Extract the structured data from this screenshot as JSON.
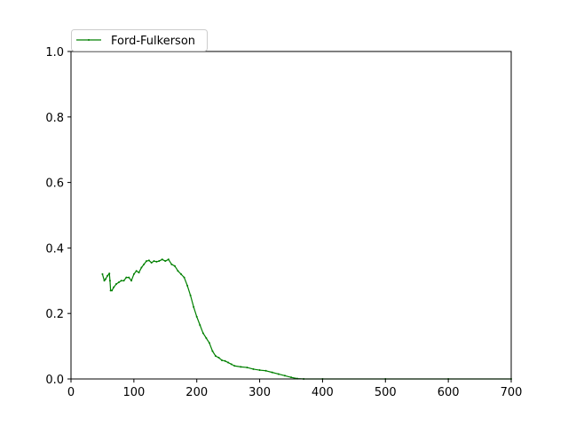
{
  "chart_data": {
    "type": "line",
    "xlim": [
      0,
      700
    ],
    "ylim": [
      0,
      1.0
    ],
    "xticks": [
      "0",
      "100",
      "200",
      "300",
      "400",
      "500",
      "600",
      "700"
    ],
    "yticks": [
      "0.0",
      "0.2",
      "0.4",
      "0.6",
      "0.8",
      "1.0"
    ],
    "grid": false,
    "legend_position": "top-left",
    "series": [
      {
        "name": "Ford-Fulkerson",
        "color": "#008000",
        "marker": "point",
        "x": [
          50,
          53,
          55,
          58,
          61,
          62,
          63,
          65,
          68,
          72,
          76,
          80,
          84,
          88,
          92,
          96,
          100,
          104,
          108,
          112,
          116,
          120,
          124,
          128,
          132,
          136,
          140,
          145,
          150,
          155,
          160,
          165,
          170,
          175,
          180,
          185,
          190,
          195,
          200,
          205,
          210,
          215,
          220,
          225,
          230,
          235,
          240,
          245,
          250,
          255,
          260,
          270,
          280,
          290,
          300,
          310,
          320,
          330,
          340,
          350,
          360,
          370,
          400,
          500,
          600,
          700
        ],
        "y": [
          0.32,
          0.3,
          0.305,
          0.315,
          0.322,
          0.3,
          0.27,
          0.27,
          0.28,
          0.29,
          0.295,
          0.3,
          0.3,
          0.31,
          0.31,
          0.3,
          0.32,
          0.33,
          0.325,
          0.34,
          0.35,
          0.36,
          0.362,
          0.355,
          0.36,
          0.358,
          0.36,
          0.365,
          0.36,
          0.365,
          0.35,
          0.345,
          0.33,
          0.32,
          0.31,
          0.285,
          0.255,
          0.22,
          0.19,
          0.165,
          0.14,
          0.125,
          0.11,
          0.085,
          0.07,
          0.065,
          0.057,
          0.055,
          0.05,
          0.045,
          0.04,
          0.037,
          0.035,
          0.03,
          0.027,
          0.025,
          0.02,
          0.015,
          0.01,
          0.005,
          0.001,
          0.0,
          0.0,
          0.0,
          0.0,
          0.0
        ]
      }
    ]
  }
}
